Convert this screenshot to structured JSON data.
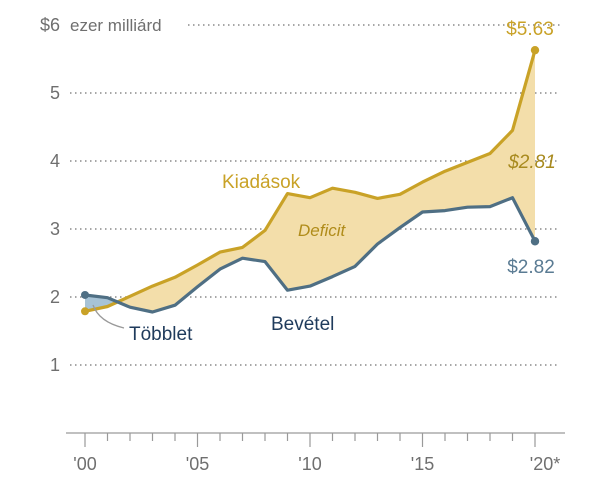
{
  "chart_data": {
    "type": "area",
    "unit_label": "ezer milliárd",
    "y_currency_prefix": "$",
    "ylim": [
      0,
      6
    ],
    "y_ticks": [
      1,
      2,
      3,
      4,
      5,
      6
    ],
    "y_tick_labels": [
      "1",
      "2",
      "3",
      "4",
      "5",
      "$6"
    ],
    "xlim": [
      2000,
      2020
    ],
    "x_ticks": [
      2000,
      2005,
      2010,
      2015,
      2020
    ],
    "x_tick_labels": [
      "'00",
      "'05",
      "'10",
      "'15",
      "'20*"
    ],
    "grid": true,
    "series": [
      {
        "name": "Kiadások",
        "color": "#c9a227",
        "x": [
          2000,
          2001,
          2002,
          2003,
          2004,
          2005,
          2006,
          2007,
          2008,
          2009,
          2010,
          2011,
          2012,
          2013,
          2014,
          2015,
          2016,
          2017,
          2018,
          2019,
          2020
        ],
        "values": [
          1.79,
          1.86,
          2.01,
          2.16,
          2.29,
          2.47,
          2.66,
          2.73,
          2.98,
          3.52,
          3.46,
          3.6,
          3.54,
          3.45,
          3.51,
          3.69,
          3.85,
          3.98,
          4.11,
          4.45,
          5.63
        ]
      },
      {
        "name": "Bevétel",
        "color": "#4f6f84",
        "x": [
          2000,
          2001,
          2002,
          2003,
          2004,
          2005,
          2006,
          2007,
          2008,
          2009,
          2010,
          2011,
          2012,
          2013,
          2014,
          2015,
          2016,
          2017,
          2018,
          2019,
          2020
        ],
        "values": [
          2.03,
          1.99,
          1.85,
          1.78,
          1.88,
          2.15,
          2.41,
          2.57,
          2.52,
          2.1,
          2.16,
          2.3,
          2.45,
          2.78,
          3.02,
          3.25,
          3.27,
          3.32,
          3.33,
          3.46,
          2.82
        ]
      }
    ],
    "annotations": {
      "deficit_label": "Deficit",
      "surplus_label": "Többlet",
      "end_expenses": "$5.63",
      "end_revenue": "$2.82",
      "end_gap": "$2.81"
    },
    "colors": {
      "deficit_fill": "#f3deaa",
      "surplus_fill": "#a7c3d6"
    }
  }
}
